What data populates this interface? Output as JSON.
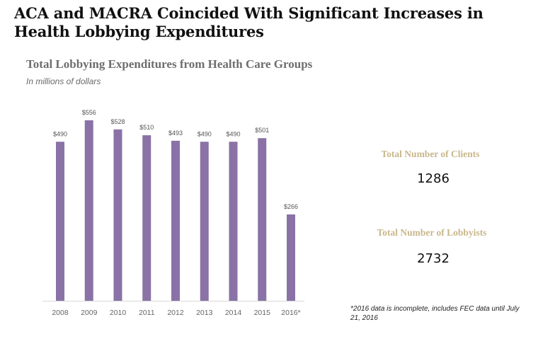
{
  "headline": "ACA and MACRA Coincided With Significant Increases in Health Lobbying Expenditures",
  "chart_data": {
    "type": "bar",
    "title": "Total Lobbying Expenditures from Health Care Groups",
    "subtitle": "In millions of dollars",
    "categories": [
      "2008",
      "2009",
      "2010",
      "2011",
      "2012",
      "2013",
      "2014",
      "2015",
      "2016*"
    ],
    "values": [
      490,
      556,
      528,
      510,
      493,
      490,
      490,
      501,
      266
    ],
    "data_labels": [
      "$490",
      "$556",
      "$528",
      "$510",
      "$493",
      "$490",
      "$490",
      "$501",
      "$266"
    ],
    "xlabel": "",
    "ylabel": "",
    "ylim": [
      0,
      600
    ],
    "grid": false,
    "bar_color": "#8a72a6"
  },
  "stats": {
    "clients_label": "Total Number of Clients",
    "clients_value": "1286",
    "lobbyists_label": "Total Number of Lobbyists",
    "lobbyists_value": "2732"
  },
  "footnote": "*2016 data is incomplete, includes FEC data until July 21, 2016"
}
